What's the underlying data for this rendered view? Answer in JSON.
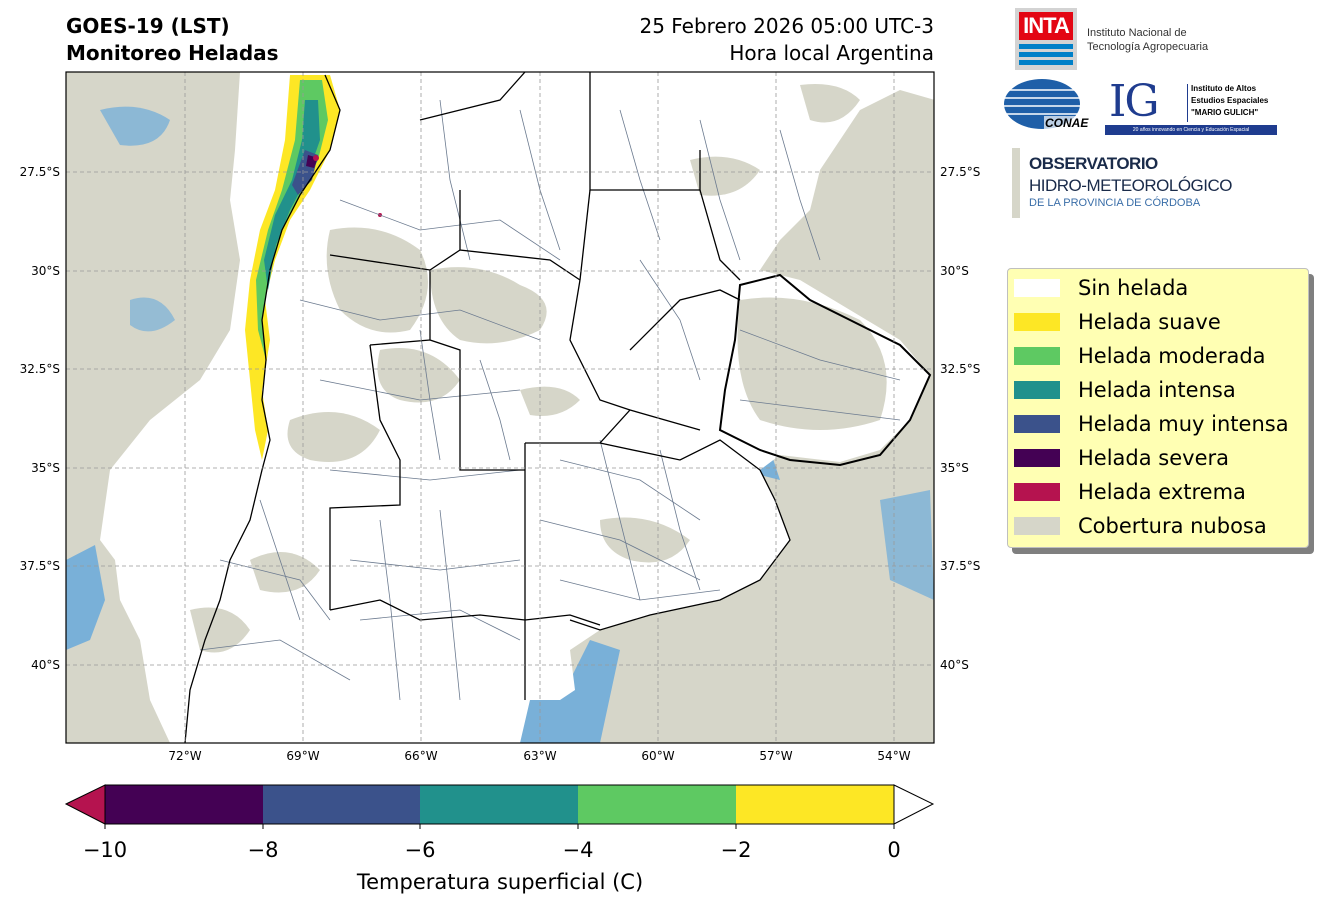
{
  "header": {
    "title_line1": "GOES-19 (LST)",
    "title_line2": "Monitoreo Heladas",
    "date_line1": "25 Febrero 2026 05:00 UTC-3",
    "date_line2": "Hora local Argentina"
  },
  "map": {
    "lat_ticks": [
      "27.5°S",
      "30°S",
      "32.5°S",
      "35°S",
      "37.5°S",
      "40°S"
    ],
    "lon_ticks": [
      "72°W",
      "69°W",
      "66°W",
      "63°W",
      "60°W",
      "57°W",
      "54°W"
    ],
    "colors": {
      "cloud": "#d6d6c9",
      "water": "#79b0d8",
      "land": "#ffffff",
      "border": "#000000",
      "division": "#6b7a8f"
    }
  },
  "legend": {
    "items": [
      {
        "label": "Sin helada",
        "color": "#ffffff"
      },
      {
        "label": "Helada suave",
        "color": "#fde725"
      },
      {
        "label": "Helada moderada",
        "color": "#5ec962"
      },
      {
        "label": "Helada intensa",
        "color": "#21918c"
      },
      {
        "label": "Helada muy intensa",
        "color": "#3b528b"
      },
      {
        "label": "Helada severa",
        "color": "#440154"
      },
      {
        "label": "Helada extrema",
        "color": "#b5134f"
      },
      {
        "label": "Cobertura nubosa",
        "color": "#d6d6c9"
      }
    ]
  },
  "colorbar": {
    "ticks": [
      "−10",
      "−8",
      "−6",
      "−4",
      "−2",
      "0"
    ],
    "label": "Temperatura superficial (C)",
    "segments": [
      "#440154",
      "#3b528b",
      "#21918c",
      "#5ec962",
      "#fde725"
    ],
    "under_color": "#b5134f",
    "over_color": "#ffffff"
  },
  "logos": {
    "inta_mark": "INTA",
    "inta_line1": "Instituto Nacional de",
    "inta_line2": "Tecnología Agropecuaria",
    "conae": "CONAE",
    "ig_mark": "IG",
    "ig_line1": "Instituto de Altos",
    "ig_line2": "Estudios Espaciales",
    "ig_line3": "\"MARIO GULICH\"",
    "ig_tagline": "20 años innovando en Ciencia y Educación Espacial",
    "obs_line1": "OBSERVATORIO",
    "obs_line2": "HIDRO-METEOROLÓGICO",
    "obs_line3": "DE LA PROVINCIA DE CÓRDOBA"
  }
}
